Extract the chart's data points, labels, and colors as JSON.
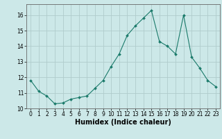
{
  "x": [
    0,
    1,
    2,
    3,
    4,
    5,
    6,
    7,
    8,
    9,
    10,
    11,
    12,
    13,
    14,
    15,
    16,
    17,
    18,
    19,
    20,
    21,
    22,
    23
  ],
  "y": [
    11.8,
    11.1,
    10.8,
    10.3,
    10.35,
    10.6,
    10.7,
    10.8,
    11.3,
    11.8,
    12.7,
    13.5,
    14.7,
    15.3,
    15.8,
    16.3,
    14.3,
    14.0,
    13.5,
    16.0,
    13.3,
    12.6,
    11.8,
    11.4
  ],
  "line_color": "#1a7a6a",
  "marker": "D",
  "marker_size": 2.0,
  "bg_color": "#cce8e8",
  "grid_color": "#b0cccc",
  "xlabel": "Humidex (Indice chaleur)",
  "xlim": [
    -0.5,
    23.5
  ],
  "ylim": [
    10,
    16.7
  ],
  "yticks": [
    10,
    11,
    12,
    13,
    14,
    15,
    16
  ],
  "xticks": [
    0,
    1,
    2,
    3,
    4,
    5,
    6,
    7,
    8,
    9,
    10,
    11,
    12,
    13,
    14,
    15,
    16,
    17,
    18,
    19,
    20,
    21,
    22,
    23
  ],
  "xlabel_fontsize": 7,
  "tick_fontsize": 5.5
}
